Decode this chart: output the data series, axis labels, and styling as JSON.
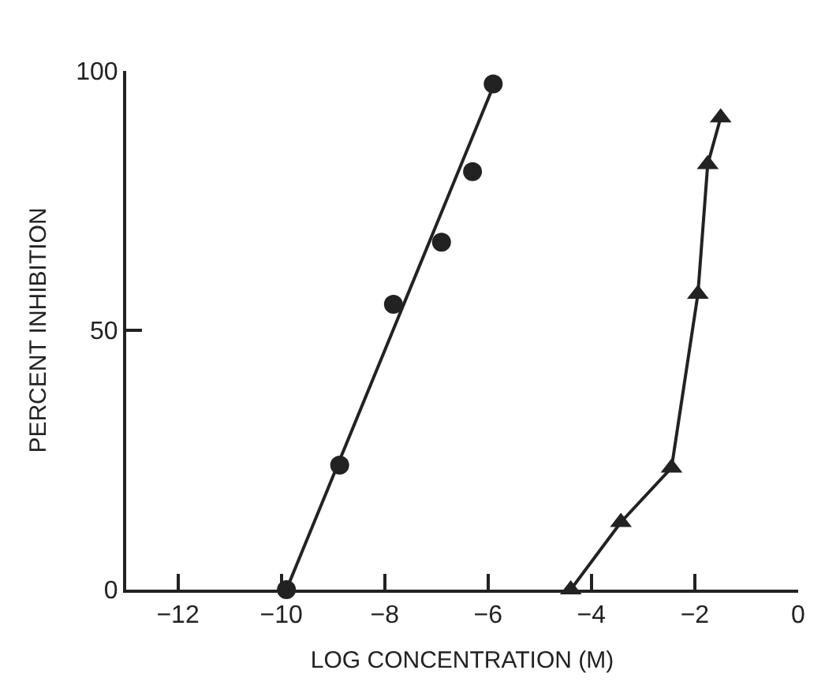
{
  "chart_data": {
    "type": "scatter",
    "xlabel": "LOG CONCENTRATION (M)",
    "ylabel": "PERCENT INHIBITION",
    "xlim": [
      -13,
      0
    ],
    "ylim": [
      0,
      100
    ],
    "xticks": [
      -12,
      -10,
      -8,
      -6,
      -4,
      -2,
      0
    ],
    "yticks": [
      0,
      50,
      100
    ],
    "series": [
      {
        "marker": "circle",
        "color": "#222222",
        "x": [
          -9.9,
          -8.87,
          -7.83,
          -6.9,
          -6.3,
          -5.9
        ],
        "values": [
          0,
          24,
          55,
          67,
          80.6,
          97.5
        ]
      },
      {
        "type": "line",
        "marker": "none",
        "line_style": "solid",
        "color": "#222222",
        "x": [
          -9.9,
          -5.9
        ],
        "values": [
          0,
          97
        ]
      },
      {
        "type": "line",
        "marker": "triangle",
        "line_style": "solid",
        "color": "#222222",
        "x": [
          -4.4,
          -3.43,
          -2.45,
          -1.94,
          -1.75,
          -1.5
        ],
        "values": [
          0,
          13,
          23.5,
          57,
          82,
          91
        ]
      }
    ]
  }
}
